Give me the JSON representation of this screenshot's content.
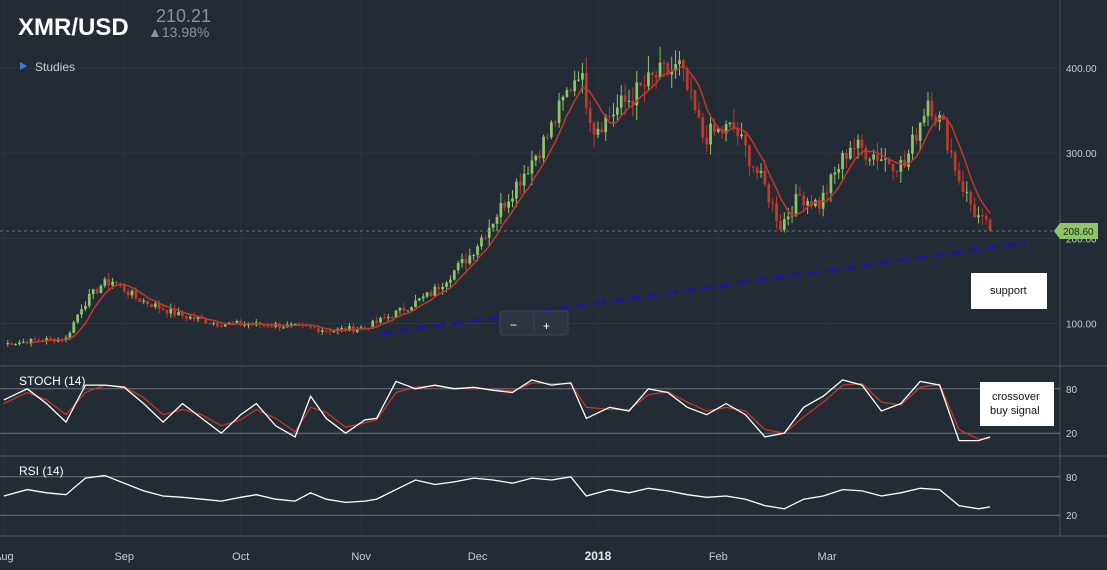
{
  "header": {
    "symbol": "XMR/USD",
    "price": "210.21",
    "change": "▲13.98%"
  },
  "toolbar": {
    "studies_label": "Studies",
    "zoom_out_label": "−",
    "zoom_in_label": "+"
  },
  "colors": {
    "background": "#232b34",
    "up_candle": "#8fc46a",
    "down_candle": "#c0392b",
    "ma_line": "#c0392b",
    "oscillator_line": "#ffffff",
    "signal_line": "#c0392b",
    "support_line": "#1a1a8c",
    "price_badge": "#8fc46a"
  },
  "chart_data": [
    {
      "type": "candlestick",
      "panel": "price",
      "title": "XMR/USD",
      "ylim": [
        50,
        480
      ],
      "y_ticks": [
        100,
        200,
        300,
        400
      ],
      "y_tick_labels": [
        "100.00",
        "200.00",
        "300.00",
        "400.00"
      ],
      "x_tick_labels": [
        "Aug",
        "Sep",
        "Oct",
        "Nov",
        "Dec",
        "2018",
        "Feb",
        "Mar"
      ],
      "x_tick_days": [
        0,
        31,
        61,
        92,
        122,
        153,
        184,
        212
      ],
      "last_price_label": "208.60",
      "last_price": 208.6,
      "anchors": [
        {
          "day": 0,
          "close": 76
        },
        {
          "day": 8,
          "close": 80
        },
        {
          "day": 16,
          "close": 82
        },
        {
          "day": 20,
          "close": 120
        },
        {
          "day": 25,
          "close": 145
        },
        {
          "day": 28,
          "close": 150
        },
        {
          "day": 34,
          "close": 130
        },
        {
          "day": 45,
          "close": 110
        },
        {
          "day": 55,
          "close": 100
        },
        {
          "day": 70,
          "close": 98
        },
        {
          "day": 85,
          "close": 92
        },
        {
          "day": 93,
          "close": 95
        },
        {
          "day": 100,
          "close": 110
        },
        {
          "day": 110,
          "close": 135
        },
        {
          "day": 120,
          "close": 180
        },
        {
          "day": 130,
          "close": 250
        },
        {
          "day": 140,
          "close": 320
        },
        {
          "day": 148,
          "close": 400
        },
        {
          "day": 152,
          "close": 330
        },
        {
          "day": 160,
          "close": 360
        },
        {
          "day": 168,
          "close": 390
        },
        {
          "day": 174,
          "close": 400
        },
        {
          "day": 180,
          "close": 320
        },
        {
          "day": 188,
          "close": 330
        },
        {
          "day": 196,
          "close": 260
        },
        {
          "day": 200,
          "close": 215
        },
        {
          "day": 205,
          "close": 250
        },
        {
          "day": 210,
          "close": 240
        },
        {
          "day": 218,
          "close": 310
        },
        {
          "day": 226,
          "close": 295
        },
        {
          "day": 232,
          "close": 285
        },
        {
          "day": 238,
          "close": 365
        },
        {
          "day": 242,
          "close": 330
        },
        {
          "day": 246,
          "close": 270
        },
        {
          "day": 250,
          "close": 230
        },
        {
          "day": 254,
          "close": 209
        }
      ],
      "support_line": {
        "from": {
          "day": 97,
          "value": 88
        },
        "to": {
          "day": 263,
          "value": 195
        }
      },
      "moving_average": {
        "name": "",
        "period": 7
      }
    },
    {
      "type": "line",
      "panel": "stoch",
      "title": "STOCH (14)",
      "ylim": [
        0,
        100
      ],
      "y_ticks": [
        20,
        80
      ],
      "series": [
        {
          "role": "k",
          "points": [
            [
              0,
              65
            ],
            [
              6,
              80
            ],
            [
              11,
              60
            ],
            [
              16,
              35
            ],
            [
              21,
              85
            ],
            [
              26,
              85
            ],
            [
              31,
              82
            ],
            [
              36,
              60
            ],
            [
              41,
              35
            ],
            [
              46,
              60
            ],
            [
              51,
              40
            ],
            [
              56,
              20
            ],
            [
              61,
              45
            ],
            [
              65,
              60
            ],
            [
              70,
              30
            ],
            [
              75,
              15
            ],
            [
              79,
              70
            ],
            [
              83,
              40
            ],
            [
              88,
              20
            ],
            [
              93,
              38
            ],
            [
              96,
              40
            ],
            [
              101,
              90
            ],
            [
              106,
              80
            ],
            [
              111,
              85
            ],
            [
              116,
              80
            ],
            [
              121,
              82
            ],
            [
              126,
              78
            ],
            [
              131,
              75
            ],
            [
              136,
              92
            ],
            [
              141,
              85
            ],
            [
              146,
              88
            ],
            [
              150,
              40
            ],
            [
              156,
              55
            ],
            [
              161,
              50
            ],
            [
              166,
              80
            ],
            [
              171,
              75
            ],
            [
              176,
              55
            ],
            [
              181,
              45
            ],
            [
              186,
              60
            ],
            [
              191,
              45
            ],
            [
              196,
              15
            ],
            [
              201,
              20
            ],
            [
              206,
              55
            ],
            [
              211,
              70
            ],
            [
              216,
              92
            ],
            [
              221,
              85
            ],
            [
              226,
              50
            ],
            [
              231,
              60
            ],
            [
              236,
              90
            ],
            [
              241,
              85
            ],
            [
              246,
              10
            ],
            [
              251,
              10
            ],
            [
              254,
              15
            ]
          ]
        },
        {
          "role": "signal",
          "points": [
            [
              0,
              60
            ],
            [
              6,
              75
            ],
            [
              11,
              65
            ],
            [
              16,
              45
            ],
            [
              21,
              75
            ],
            [
              26,
              85
            ],
            [
              31,
              83
            ],
            [
              36,
              68
            ],
            [
              41,
              45
            ],
            [
              46,
              52
            ],
            [
              51,
              45
            ],
            [
              56,
              30
            ],
            [
              61,
              38
            ],
            [
              65,
              52
            ],
            [
              70,
              40
            ],
            [
              75,
              22
            ],
            [
              79,
              55
            ],
            [
              83,
              48
            ],
            [
              88,
              28
            ],
            [
              93,
              34
            ],
            [
              96,
              38
            ],
            [
              101,
              75
            ],
            [
              106,
              82
            ],
            [
              111,
              84
            ],
            [
              116,
              81
            ],
            [
              121,
              81
            ],
            [
              126,
              79
            ],
            [
              131,
              77
            ],
            [
              136,
              88
            ],
            [
              141,
              87
            ],
            [
              146,
              87
            ],
            [
              150,
              55
            ],
            [
              156,
              52
            ],
            [
              161,
              52
            ],
            [
              166,
              72
            ],
            [
              171,
              76
            ],
            [
              176,
              62
            ],
            [
              181,
              50
            ],
            [
              186,
              55
            ],
            [
              191,
              50
            ],
            [
              196,
              25
            ],
            [
              201,
              20
            ],
            [
              206,
              42
            ],
            [
              211,
              62
            ],
            [
              216,
              85
            ],
            [
              221,
              87
            ],
            [
              226,
              62
            ],
            [
              231,
              58
            ],
            [
              236,
              82
            ],
            [
              241,
              86
            ],
            [
              246,
              25
            ],
            [
              251,
              12
            ],
            [
              254,
              13
            ]
          ]
        }
      ]
    },
    {
      "type": "line",
      "panel": "rsi",
      "title": "RSI (14)",
      "ylim": [
        0,
        100
      ],
      "y_ticks": [
        20,
        80
      ],
      "series": [
        {
          "role": "rsi",
          "points": [
            [
              0,
              50
            ],
            [
              6,
              60
            ],
            [
              11,
              55
            ],
            [
              16,
              52
            ],
            [
              21,
              78
            ],
            [
              26,
              82
            ],
            [
              31,
              70
            ],
            [
              36,
              58
            ],
            [
              41,
              50
            ],
            [
              46,
              48
            ],
            [
              51,
              45
            ],
            [
              56,
              42
            ],
            [
              61,
              48
            ],
            [
              65,
              52
            ],
            [
              70,
              45
            ],
            [
              75,
              42
            ],
            [
              79,
              55
            ],
            [
              83,
              45
            ],
            [
              88,
              40
            ],
            [
              93,
              42
            ],
            [
              96,
              45
            ],
            [
              101,
              60
            ],
            [
              106,
              75
            ],
            [
              111,
              68
            ],
            [
              116,
              72
            ],
            [
              121,
              78
            ],
            [
              126,
              75
            ],
            [
              131,
              70
            ],
            [
              136,
              78
            ],
            [
              141,
              75
            ],
            [
              146,
              80
            ],
            [
              150,
              50
            ],
            [
              156,
              60
            ],
            [
              161,
              55
            ],
            [
              166,
              62
            ],
            [
              171,
              58
            ],
            [
              176,
              52
            ],
            [
              181,
              48
            ],
            [
              186,
              50
            ],
            [
              191,
              45
            ],
            [
              196,
              35
            ],
            [
              201,
              30
            ],
            [
              206,
              45
            ],
            [
              211,
              50
            ],
            [
              216,
              60
            ],
            [
              221,
              58
            ],
            [
              226,
              50
            ],
            [
              231,
              55
            ],
            [
              236,
              62
            ],
            [
              241,
              60
            ],
            [
              246,
              35
            ],
            [
              251,
              30
            ],
            [
              254,
              33
            ]
          ]
        }
      ]
    }
  ],
  "annotations": {
    "support": "support",
    "crossover_line1": "crossover",
    "crossover_line2": "buy signal"
  }
}
